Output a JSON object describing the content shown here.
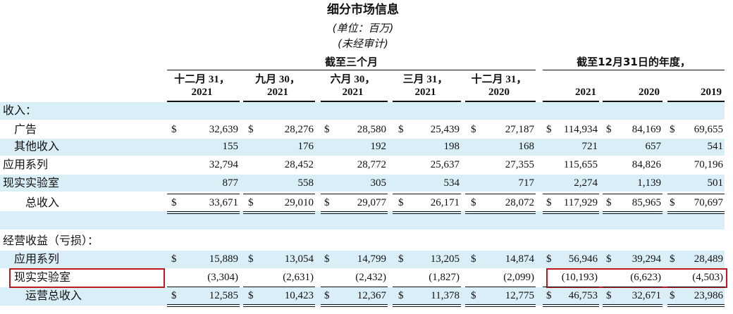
{
  "header": {
    "title": "细分市场信息",
    "unit": "(单位：百万)",
    "audit": "(未经审计)"
  },
  "table": {
    "column_groups": [
      "截至三个月",
      "截至12月31日的年度，"
    ],
    "columns": [
      [
        "十二月 31，",
        "2021"
      ],
      [
        "九月 30，",
        "2021"
      ],
      [
        "六月 30，",
        "2021"
      ],
      [
        "三月 31，",
        "2021"
      ],
      [
        "十二月 31，",
        "2020"
      ],
      [
        "2021"
      ],
      [
        "2020"
      ],
      [
        "2019"
      ]
    ],
    "currency_symbol": "$",
    "rows": [
      {
        "label": "收入："
      },
      {
        "label": "广告",
        "dollar": true,
        "cells": [
          "32,639",
          "28,276",
          "28,580",
          "25,439",
          "27,187",
          "114,934",
          "84,169",
          "69,655"
        ]
      },
      {
        "label": "其他收入",
        "cells": [
          "155",
          "176",
          "192",
          "198",
          "168",
          "721",
          "657",
          "541"
        ]
      },
      {
        "label": "应用系列",
        "cells": [
          "32,794",
          "28,452",
          "28,772",
          "25,637",
          "27,355",
          "115,655",
          "84,826",
          "70,196"
        ]
      },
      {
        "label": "现实实验室",
        "cells": [
          "877",
          "558",
          "305",
          "534",
          "717",
          "2,274",
          "1,139",
          "501"
        ]
      },
      {
        "label": "总收入",
        "dollar": true,
        "total": true,
        "cells": [
          "33,671",
          "29,010",
          "29,077",
          "26,171",
          "28,072",
          "117,929",
          "85,965",
          "70,697"
        ]
      },
      {
        "label": "经营收益（亏损）："
      },
      {
        "label": "应用系列",
        "dollar": true,
        "cells": [
          "15,889",
          "13,054",
          "14,799",
          "13,205",
          "14,874",
          "56,946",
          "39,294",
          "28,489"
        ]
      },
      {
        "label": "现实实验室",
        "cells": [
          "(3,304)",
          "(2,631)",
          "(2,432)",
          "(1,827)",
          "(2,099)",
          "(10,193)",
          "(6,623)",
          "(4,503)"
        ]
      },
      {
        "label": "运营总收入",
        "dollar": true,
        "total": true,
        "cells": [
          "12,585",
          "10,423",
          "12,367",
          "11,378",
          "12,775",
          "46,753",
          "32,671",
          "23,986"
        ]
      }
    ]
  }
}
